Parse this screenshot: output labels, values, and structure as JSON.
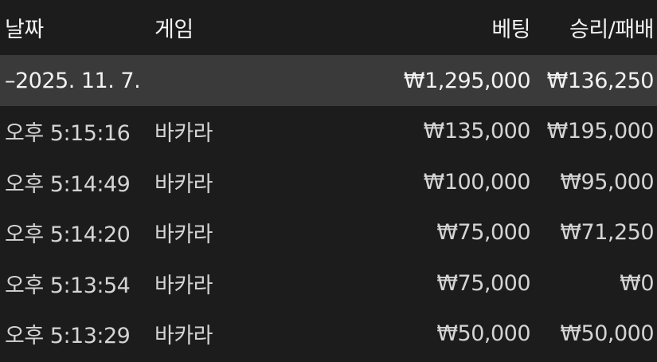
{
  "header": {
    "date": "날짜",
    "game": "게임",
    "bet": "베팅",
    "result": "승리/패배"
  },
  "group": {
    "toggle": "–",
    "date": "2025. 11. 7.",
    "bet": "₩1,295,000",
    "result": "₩136,250"
  },
  "rows": [
    {
      "time": "오후 5:15:16",
      "game": "바카라",
      "bet": "₩135,000",
      "result": "₩195,000"
    },
    {
      "time": "오후 5:14:49",
      "game": "바카라",
      "bet": "₩100,000",
      "result": "₩95,000"
    },
    {
      "time": "오후 5:14:20",
      "game": "바카라",
      "bet": "₩75,000",
      "result": "₩71,250"
    },
    {
      "time": "오후 5:13:54",
      "game": "바카라",
      "bet": "₩75,000",
      "result": "₩0"
    },
    {
      "time": "오후 5:13:29",
      "game": "바카라",
      "bet": "₩50,000",
      "result": "₩50,000"
    }
  ]
}
